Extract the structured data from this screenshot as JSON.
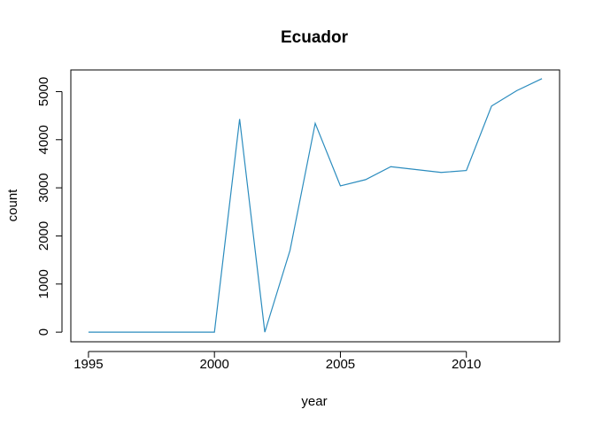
{
  "chart_data": {
    "type": "line",
    "title": "Ecuador",
    "xlabel": "year",
    "ylabel": "count",
    "xlim": [
      1994.3,
      2013.7
    ],
    "ylim": [
      -200,
      5450
    ],
    "xticks": [
      1995,
      2000,
      2005,
      2010
    ],
    "yticks": [
      0,
      1000,
      2000,
      3000,
      4000,
      5000
    ],
    "grid": false,
    "color": "#2B8CBE",
    "series": [
      {
        "x": [
          1995,
          1996,
          1997,
          1998,
          1999,
          2000,
          2001,
          2002,
          2003,
          2004,
          2005,
          2006,
          2007,
          2008,
          2009,
          2010,
          2011,
          2012,
          2013
        ],
        "y": [
          0,
          0,
          0,
          0,
          0,
          0,
          4430,
          0,
          1700,
          4340,
          3040,
          3170,
          3440,
          3380,
          3320,
          3360,
          4700,
          5020,
          5270
        ]
      }
    ]
  }
}
